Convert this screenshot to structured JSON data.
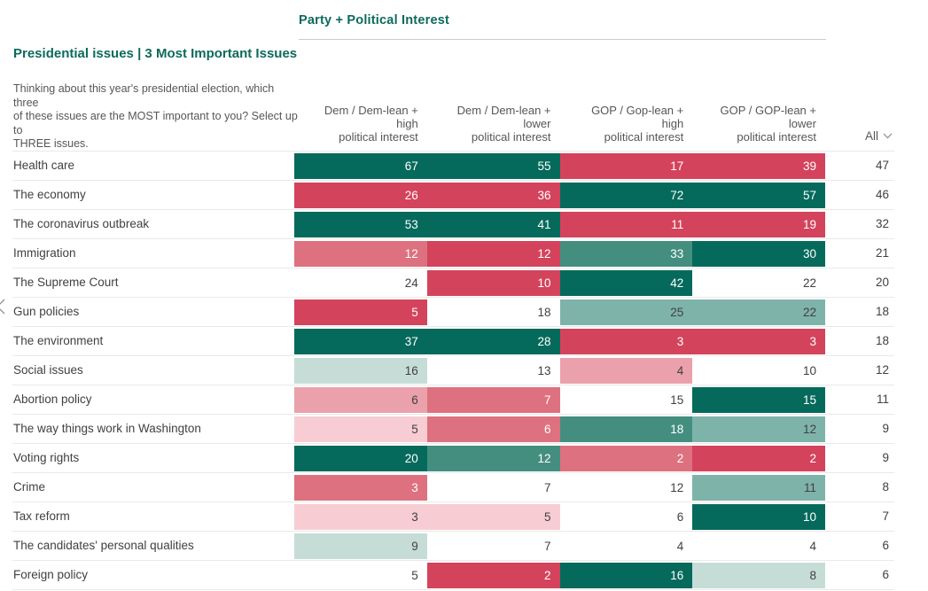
{
  "group": {
    "title": "Party + Political Interest"
  },
  "question": {
    "title": "Presidential issues | 3 Most Important Issues",
    "description_lines": [
      "Thinking about this year's presidential election, which",
      "three",
      "of these issues are the MOST important to you? Select up",
      "to",
      "THREE issues."
    ]
  },
  "table": {
    "columns": [
      {
        "lines": [
          "Dem / Dem-lean +",
          "high",
          "political interest"
        ]
      },
      {
        "lines": [
          "Dem / Dem-lean +",
          "lower",
          "political interest"
        ]
      },
      {
        "lines": [
          "GOP / Gop-lean +",
          "high",
          "political interest"
        ]
      },
      {
        "lines": [
          "GOP / GOP-lean +",
          "lower",
          "political interest"
        ]
      }
    ],
    "all_column": {
      "label": "All",
      "icon": "chevron-down-icon"
    },
    "rows": [
      {
        "label": "Health care",
        "cells": [
          {
            "v": 67,
            "tier": "t4"
          },
          {
            "v": 55,
            "tier": "t4"
          },
          {
            "v": 17,
            "tier": "p4"
          },
          {
            "v": 39,
            "tier": "p4"
          }
        ],
        "all": 47
      },
      {
        "label": "The economy",
        "cells": [
          {
            "v": 26,
            "tier": "p4"
          },
          {
            "v": 36,
            "tier": "p4"
          },
          {
            "v": 72,
            "tier": "t4"
          },
          {
            "v": 57,
            "tier": "t4"
          }
        ],
        "all": 46
      },
      {
        "label": "The coronavirus outbreak",
        "cells": [
          {
            "v": 53,
            "tier": "t4"
          },
          {
            "v": 41,
            "tier": "t4"
          },
          {
            "v": 11,
            "tier": "p4"
          },
          {
            "v": 19,
            "tier": "p4"
          }
        ],
        "all": 32
      },
      {
        "label": "Immigration",
        "cells": [
          {
            "v": 12,
            "tier": "p3"
          },
          {
            "v": 12,
            "tier": "p4"
          },
          {
            "v": 33,
            "tier": "t3"
          },
          {
            "v": 30,
            "tier": "t4"
          }
        ],
        "all": 21
      },
      {
        "label": "The Supreme Court",
        "cells": [
          {
            "v": 24,
            "tier": "none"
          },
          {
            "v": 10,
            "tier": "p4"
          },
          {
            "v": 42,
            "tier": "t4"
          },
          {
            "v": 22,
            "tier": "none"
          }
        ],
        "all": 20
      },
      {
        "label": "Gun policies",
        "cells": [
          {
            "v": 5,
            "tier": "p4"
          },
          {
            "v": 18,
            "tier": "none"
          },
          {
            "v": 25,
            "tier": "t2"
          },
          {
            "v": 22,
            "tier": "t2"
          }
        ],
        "all": 18
      },
      {
        "label": "The environment",
        "cells": [
          {
            "v": 37,
            "tier": "t4"
          },
          {
            "v": 28,
            "tier": "t4"
          },
          {
            "v": 3,
            "tier": "p4"
          },
          {
            "v": 3,
            "tier": "p4"
          }
        ],
        "all": 18
      },
      {
        "label": "Social issues",
        "cells": [
          {
            "v": 16,
            "tier": "t1"
          },
          {
            "v": 13,
            "tier": "none"
          },
          {
            "v": 4,
            "tier": "p2"
          },
          {
            "v": 10,
            "tier": "none"
          }
        ],
        "all": 12
      },
      {
        "label": "Abortion policy",
        "cells": [
          {
            "v": 6,
            "tier": "p2"
          },
          {
            "v": 7,
            "tier": "p3"
          },
          {
            "v": 15,
            "tier": "none"
          },
          {
            "v": 15,
            "tier": "t4"
          }
        ],
        "all": 11
      },
      {
        "label": "The way things work in Washington",
        "cells": [
          {
            "v": 5,
            "tier": "p1"
          },
          {
            "v": 6,
            "tier": "p3"
          },
          {
            "v": 18,
            "tier": "t3"
          },
          {
            "v": 12,
            "tier": "t2"
          }
        ],
        "all": 9
      },
      {
        "label": "Voting rights",
        "cells": [
          {
            "v": 20,
            "tier": "t4"
          },
          {
            "v": 12,
            "tier": "t3"
          },
          {
            "v": 2,
            "tier": "p3"
          },
          {
            "v": 2,
            "tier": "p4"
          }
        ],
        "all": 9
      },
      {
        "label": "Crime",
        "cells": [
          {
            "v": 3,
            "tier": "p3"
          },
          {
            "v": 7,
            "tier": "none"
          },
          {
            "v": 12,
            "tier": "none"
          },
          {
            "v": 11,
            "tier": "t2"
          }
        ],
        "all": 8
      },
      {
        "label": "Tax reform",
        "cells": [
          {
            "v": 3,
            "tier": "p1"
          },
          {
            "v": 5,
            "tier": "p1"
          },
          {
            "v": 6,
            "tier": "none"
          },
          {
            "v": 10,
            "tier": "t4"
          }
        ],
        "all": 7
      },
      {
        "label": "The candidates' personal qualities",
        "cells": [
          {
            "v": 9,
            "tier": "t1"
          },
          {
            "v": 7,
            "tier": "none"
          },
          {
            "v": 4,
            "tier": "none"
          },
          {
            "v": 4,
            "tier": "none"
          }
        ],
        "all": 6
      },
      {
        "label": "Foreign policy",
        "cells": [
          {
            "v": 5,
            "tier": "none"
          },
          {
            "v": 2,
            "tier": "p4"
          },
          {
            "v": 16,
            "tier": "t4"
          },
          {
            "v": 8,
            "tier": "t1"
          }
        ],
        "all": 6
      }
    ]
  },
  "colors": {
    "accent_green": "#0c6a5d",
    "header_text": "#55565a",
    "cell_text_dark": "#414042",
    "cell_text_light": "#ffffff",
    "divider": "#e9e9e9",
    "tiers": {
      "t4": "#056a5b",
      "t3": "#448e80",
      "t2": "#7eb3aa",
      "t1": "#c6ddd7",
      "p4": "#d4435c",
      "p3": "#de717f",
      "p2": "#eba1ab",
      "p1": "#f7cdd3"
    },
    "dark_tiers": [
      "t4",
      "t3",
      "p4",
      "p3"
    ]
  },
  "chart_data": {
    "type": "heatmap",
    "title": "Presidential issues | 3 Most Important Issues",
    "subtitle": "Thinking about this year's presidential election, which three of these issues are the MOST important to you? Select up to THREE issues.",
    "group_label": "Party + Political Interest",
    "columns": [
      "Dem / Dem-lean + high political interest",
      "Dem / Dem-lean + lower political interest",
      "GOP / Gop-lean + high political interest",
      "GOP / GOP-lean + lower political interest",
      "All"
    ],
    "rows": [
      "Health care",
      "The economy",
      "The coronavirus outbreak",
      "Immigration",
      "The Supreme Court",
      "Gun policies",
      "The environment",
      "Social issues",
      "Abortion policy",
      "The way things work in Washington",
      "Voting rights",
      "Crime",
      "Tax reform",
      "The candidates' personal qualities",
      "Foreign policy"
    ],
    "values": [
      [
        67,
        55,
        17,
        39,
        47
      ],
      [
        26,
        36,
        72,
        57,
        46
      ],
      [
        53,
        41,
        11,
        19,
        32
      ],
      [
        12,
        12,
        33,
        30,
        21
      ],
      [
        24,
        10,
        42,
        22,
        20
      ],
      [
        5,
        18,
        25,
        22,
        18
      ],
      [
        37,
        28,
        3,
        3,
        18
      ],
      [
        16,
        13,
        4,
        10,
        12
      ],
      [
        6,
        7,
        15,
        15,
        11
      ],
      [
        5,
        6,
        18,
        12,
        9
      ],
      [
        20,
        12,
        2,
        2,
        9
      ],
      [
        3,
        7,
        12,
        11,
        8
      ],
      [
        3,
        5,
        6,
        10,
        7
      ],
      [
        9,
        7,
        4,
        4,
        6
      ],
      [
        5,
        2,
        16,
        8,
        6
      ]
    ],
    "legend": "teal = higher than overall (All), red/pink = lower than overall; intensity = magnitude of difference; white = near overall"
  }
}
